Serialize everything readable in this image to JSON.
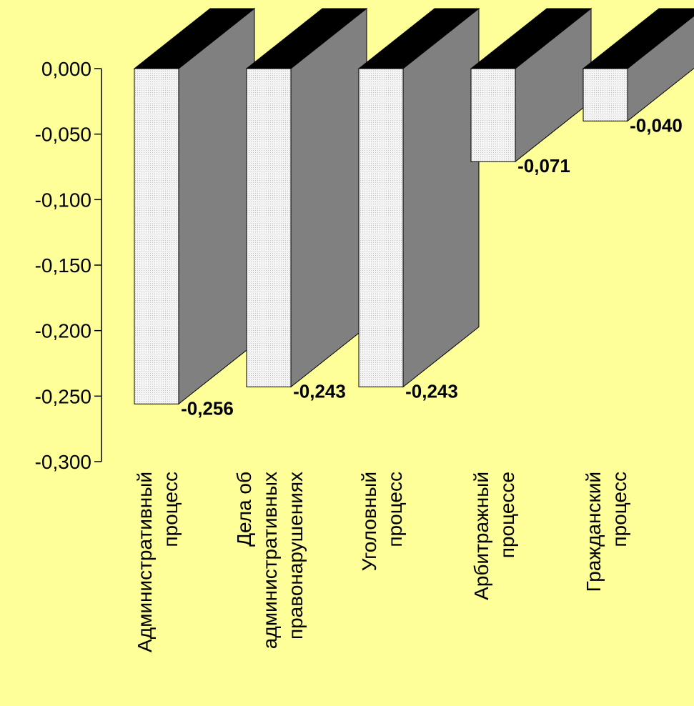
{
  "chart_data": {
    "type": "bar",
    "title": "",
    "xlabel": "",
    "ylabel": "",
    "ylim": [
      -0.3,
      0.0
    ],
    "yticks": [
      "0,000",
      "-0,050",
      "-0,100",
      "-0,150",
      "-0,200",
      "-0,250",
      "-0,300"
    ],
    "categories": [
      [
        "Административный",
        "процесс"
      ],
      [
        "Дела об",
        "административных",
        "правонарушениях"
      ],
      [
        "Уголовный",
        "процесс"
      ],
      [
        "Арбитражный",
        "процессе"
      ],
      [
        "Гражданский",
        "процесс"
      ]
    ],
    "values": [
      -0.256,
      -0.243,
      -0.243,
      -0.071,
      -0.04
    ],
    "data_labels": [
      "-0,256",
      "-0,243",
      "-0,243",
      "-0,071",
      "-0,040"
    ],
    "legend": false,
    "grid": false,
    "bar_style": "3d",
    "colors": {
      "background": "#FFFF99",
      "bar_front": "#EDEDED",
      "bar_side": "#808080",
      "bar_top": "#000000"
    }
  }
}
